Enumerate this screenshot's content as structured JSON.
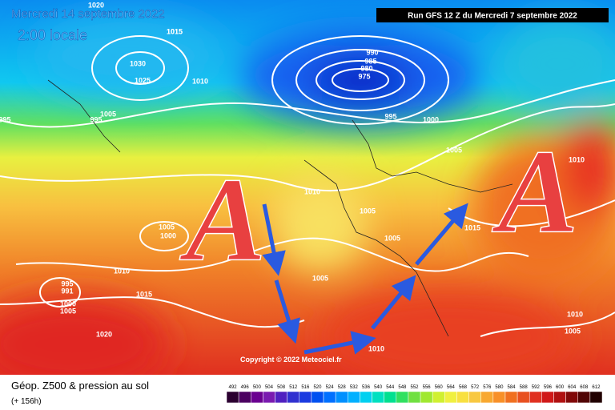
{
  "header": {
    "date": "Mercredi 14 septembre 2022",
    "time": "2:00 locale",
    "run": "Run GFS 12 Z du Mercredi 7 septembre 2022"
  },
  "map": {
    "highs": [
      "A",
      "A"
    ],
    "copyright": "Copyright © 2022 Meteociel.fr",
    "isobar_labels": [
      "1020",
      "1015",
      "1015",
      "1030",
      "1025",
      "1010",
      "995",
      "1005",
      "990",
      "985",
      "980",
      "975",
      "995",
      "1000",
      "1005",
      "1010",
      "1005",
      "1005",
      "1000",
      "1005",
      "1010",
      "1015",
      "995",
      "991",
      "1000",
      "1005",
      "1020",
      "1005",
      "1010",
      "1015",
      "1010",
      "1005",
      "1010",
      "995"
    ]
  },
  "footer": {
    "title": "Géop. Z500 & pression au sol",
    "lead": "(+ 156h)"
  },
  "legend": {
    "labels": [
      "492",
      "496",
      "500",
      "504",
      "508",
      "512",
      "516",
      "520",
      "524",
      "528",
      "532",
      "536",
      "540",
      "544",
      "548",
      "552",
      "556",
      "560",
      "564",
      "568",
      "572",
      "576",
      "580",
      "584",
      "588",
      "592",
      "596",
      "600",
      "604",
      "608",
      "612"
    ],
    "colors": [
      "#2b0030",
      "#4b0060",
      "#6a0090",
      "#7a1ab0",
      "#5020c0",
      "#3030d0",
      "#1a3ae0",
      "#0050f0",
      "#0070ff",
      "#0090ff",
      "#00b0ff",
      "#00d0f0",
      "#00e0c0",
      "#00e090",
      "#30e060",
      "#70e040",
      "#a0e830",
      "#d0f030",
      "#f0f040",
      "#f8e040",
      "#f8c840",
      "#f8a830",
      "#f89028",
      "#f07020",
      "#e85020",
      "#e03020",
      "#d01818",
      "#b01010",
      "#800808",
      "#500404",
      "#200000"
    ]
  }
}
